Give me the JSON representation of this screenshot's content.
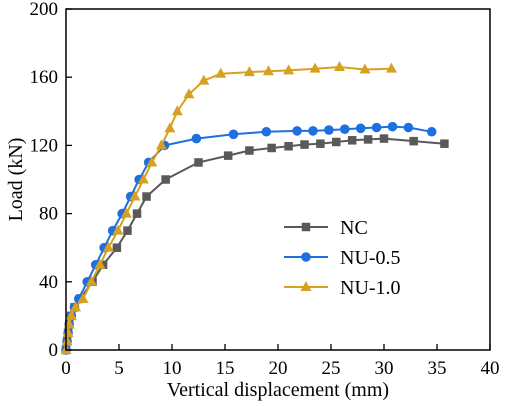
{
  "chart_data": {
    "type": "line",
    "xlabel": "Vertical displacement (mm)",
    "ylabel": "Load (kN)",
    "xlim": [
      0,
      40
    ],
    "ylim": [
      0,
      200
    ],
    "xticks": [
      0,
      5,
      10,
      15,
      20,
      25,
      30,
      35,
      40
    ],
    "yticks": [
      0,
      40,
      80,
      120,
      160,
      200
    ],
    "grid": false,
    "legend_position": "center-right",
    "series": [
      {
        "name": "NC",
        "color": "#595959",
        "marker": "square",
        "x": [
          0,
          0.1,
          0.2,
          0.3,
          0.5,
          0.8,
          1.3,
          2.5,
          3.5,
          4.8,
          5.8,
          6.7,
          7.6,
          9.4,
          12.5,
          15.3,
          17.3,
          19.4,
          21.0,
          22.5,
          24.0,
          25.5,
          27.0,
          28.5,
          30.0,
          32.8,
          35.7
        ],
        "y": [
          0,
          5,
          10,
          15,
          20,
          25,
          30,
          40,
          50,
          60,
          70,
          80,
          90,
          100,
          110,
          114,
          117,
          118.5,
          119.5,
          120.5,
          121,
          122,
          123,
          123.5,
          124,
          122.5,
          121
        ]
      },
      {
        "name": "NU-0.5",
        "color": "#1f6fe0",
        "marker": "circle",
        "x": [
          0,
          0.1,
          0.2,
          0.3,
          0.5,
          0.8,
          1.2,
          2.0,
          2.8,
          3.6,
          4.4,
          5.3,
          6.1,
          6.9,
          7.8,
          9.3,
          12.3,
          15.8,
          18.9,
          21.8,
          23.3,
          24.8,
          26.3,
          27.8,
          29.3,
          30.8,
          32.3,
          34.5
        ],
        "y": [
          0,
          5,
          10,
          15,
          20,
          25,
          30,
          40,
          50,
          60,
          70,
          80,
          90,
          100,
          110,
          120,
          124,
          126.5,
          128,
          128.5,
          128.5,
          129,
          129.5,
          130,
          130.5,
          131,
          130.5,
          128
        ]
      },
      {
        "name": "NU-1.0",
        "color": "#d8a020",
        "marker": "triangle",
        "x": [
          0,
          0.1,
          0.2,
          0.3,
          0.5,
          0.9,
          1.6,
          2.4,
          3.2,
          4.0,
          4.9,
          5.7,
          6.5,
          7.3,
          8.1,
          9.0,
          9.8,
          10.5,
          11.6,
          13.0,
          14.6,
          17.3,
          19.1,
          21.0,
          23.5,
          25.8,
          28.2,
          30.7
        ],
        "y": [
          0,
          5,
          10,
          15,
          20,
          25,
          30,
          40,
          50,
          60,
          70,
          80,
          90,
          100,
          110,
          120,
          130,
          140,
          150,
          158,
          162,
          163,
          163.5,
          164,
          165,
          166,
          164.5,
          165
        ]
      }
    ]
  }
}
